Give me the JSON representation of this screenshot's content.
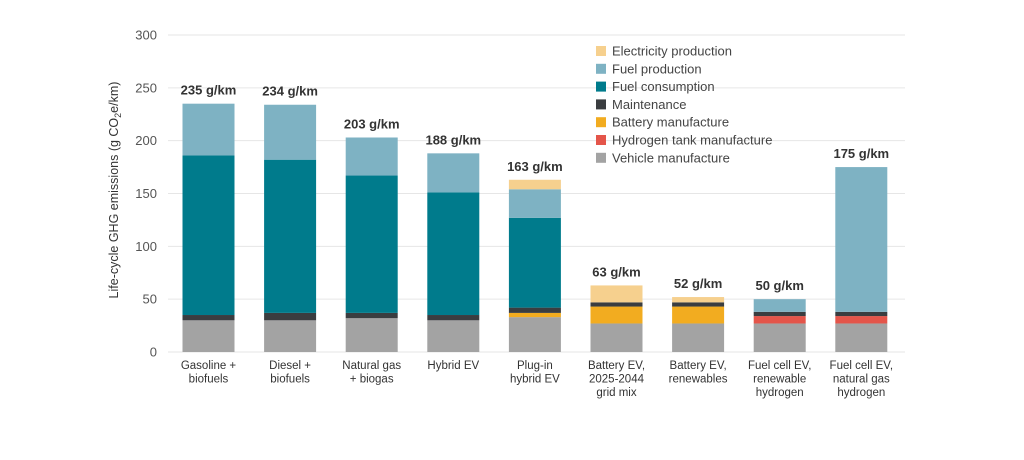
{
  "chart_data": {
    "type": "bar",
    "stacked": true,
    "title": "",
    "xlabel": "",
    "ylabel_main": "Life-cycle GHG emissions (g CO",
    "ylabel_sub": "2",
    "ylabel_tail": "e/km)",
    "ylim": [
      0,
      300
    ],
    "yticks": [
      0,
      50,
      100,
      150,
      200,
      250,
      300
    ],
    "grid": true,
    "legend_position": "top-right",
    "categories": [
      [
        "Gasoline +",
        "biofuels"
      ],
      [
        "Diesel +",
        "biofuels"
      ],
      [
        "Natural gas",
        "+ biogas"
      ],
      [
        "Hybrid EV"
      ],
      [
        "Plug-in",
        "hybrid EV"
      ],
      [
        "Battery EV,",
        "2025-2044",
        "grid mix"
      ],
      [
        "Battery EV,",
        "renewables"
      ],
      [
        "Fuel cell EV,",
        "renewable",
        "hydrogen"
      ],
      [
        "Fuel cell EV,",
        "natural gas",
        "hydrogen"
      ]
    ],
    "totals": [
      "235 g/km",
      "234 g/km",
      "203 g/km",
      "188 g/km",
      "163 g/km",
      "63 g/km",
      "52 g/km",
      "50 g/km",
      "175 g/km"
    ],
    "series": [
      {
        "name": "Vehicle manufacture",
        "color": "#a3a3a3",
        "values": [
          30,
          30,
          32,
          30,
          33,
          27,
          27,
          27,
          27
        ]
      },
      {
        "name": "Hydrogen tank manufacture",
        "color": "#e4554a",
        "values": [
          0,
          0,
          0,
          0,
          0,
          0,
          0,
          7,
          7
        ]
      },
      {
        "name": "Battery manufacture",
        "color": "#f2ac20",
        "values": [
          0,
          0,
          0,
          0,
          4,
          16,
          16,
          0,
          0
        ]
      },
      {
        "name": "Maintenance",
        "color": "#3a3d40",
        "values": [
          5,
          7,
          5,
          5,
          5,
          4,
          4,
          4,
          4
        ]
      },
      {
        "name": "Fuel consumption",
        "color": "#007b8c",
        "values": [
          151,
          145,
          130,
          116,
          85,
          0,
          0,
          0,
          0
        ]
      },
      {
        "name": "Fuel production",
        "color": "#7eb2c3",
        "values": [
          49,
          52,
          36,
          37,
          27,
          0,
          0,
          12,
          137
        ]
      },
      {
        "name": "Electricity production",
        "color": "#f6d08e",
        "values": [
          0,
          0,
          0,
          0,
          9,
          16,
          5,
          0,
          0
        ]
      }
    ],
    "legend_order": [
      "Electricity production",
      "Fuel production",
      "Fuel consumption",
      "Maintenance",
      "Battery manufacture",
      "Hydrogen tank manufacture",
      "Vehicle manufacture"
    ]
  }
}
